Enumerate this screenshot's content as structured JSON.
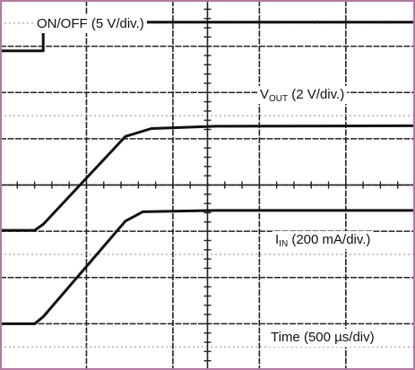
{
  "colors": {
    "background": "#ffffff",
    "frame": "#b07aa0",
    "grid": "#222222",
    "dotted_ref": "#9a9a9a",
    "trace": "#111111"
  },
  "labels": {
    "onoff": "ON/OFF (5 V/div.)",
    "vout_main": "V",
    "vout_sub": "OUT",
    "vout_unit": " (2 V/div.)",
    "iin_main": "I",
    "iin_sub": "IN",
    "iin_unit": " (200 mA/div.)",
    "time": "Time (500 µs/div)"
  },
  "chart_data": {
    "type": "line",
    "title": "",
    "grid": true,
    "xlim": [
      0,
      4.8
    ],
    "ylim": [
      0,
      8
    ],
    "x_units": "divisions (500 µs/div)",
    "y_units": "divisions",
    "series": [
      {
        "name": "ON/OFF (5 V/div.)",
        "x": [
          0,
          0.5,
          0.5,
          4.8
        ],
        "y": [
          6.9,
          6.9,
          7.52,
          7.52
        ]
      },
      {
        "name": "VOUT (2 V/div.)",
        "x": [
          0,
          0.4,
          0.5,
          1.45,
          1.75,
          2.5,
          4.8
        ],
        "y": [
          3.02,
          3.02,
          3.15,
          5.05,
          5.22,
          5.27,
          5.28
        ]
      },
      {
        "name": "IIN (200 mA/div.)",
        "x": [
          0,
          0.4,
          0.5,
          1.45,
          1.65,
          2.5,
          4.8
        ],
        "y": [
          1.0,
          1.0,
          1.15,
          3.22,
          3.42,
          3.45,
          3.45
        ]
      }
    ]
  }
}
